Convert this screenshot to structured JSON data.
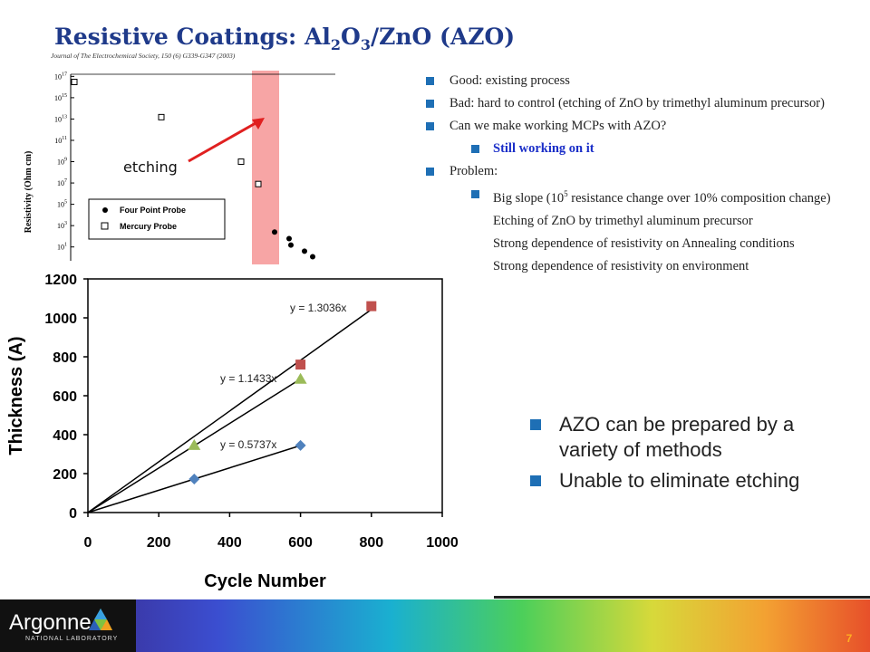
{
  "slide": {
    "title_prefix": "Resistive Coatings: Al",
    "title_sub1": "2",
    "title_mid": "O",
    "title_sub2": "3",
    "title_suffix": "/ZnO (AZO)",
    "page_number": "7",
    "logo_text": "Argonne",
    "logo_sub": "NATIONAL LABORATORY"
  },
  "bullets": [
    {
      "level": 1,
      "text": "Good: existing process"
    },
    {
      "level": 1,
      "text": "Bad: hard to control (etching of ZnO by trimethyl aluminum precursor)"
    },
    {
      "level": 1,
      "text": "Can we make working MCPs with AZO?"
    },
    {
      "level": 2,
      "text": "Still working on it",
      "style": "blue"
    },
    {
      "level": 1,
      "text": "Problem:"
    },
    {
      "level": 2,
      "text_pre": "Big slope (10",
      "sup": "5",
      "text_post": " resistance change over 10% composition change)"
    },
    {
      "level": 2,
      "text": "Etching of ZnO by trimethyl aluminum precursor",
      "nobullet": true
    },
    {
      "level": 2,
      "text": "Strong dependence of resistivity on Annealing conditions",
      "nobullet": true
    },
    {
      "level": 2,
      "text": "Strong dependence of resistivity on environment",
      "nobullet": true
    }
  ],
  "right_bullets": [
    "AZO can be prepared by a variety of methods",
    "Unable to eliminate etching"
  ],
  "colors": {
    "title": "#1f3a8a",
    "bullet": "#1e6fb5",
    "highlight_band": "#f7a5a5",
    "arrow": "#e02020",
    "series_red": "#c0504d",
    "series_green": "#9bbb59",
    "series_blue": "#4f81bd"
  },
  "chart_data": [
    {
      "type": "scatter",
      "title": "",
      "header": "Journal of The Electrochemical Society, 150 (6) G339-G347 (2003)",
      "ylabel": "Resistivity (Ohm cm)",
      "yscale": "log",
      "ytick_labels": [
        "10^17",
        "10^15",
        "10^13",
        "10^11",
        "10^9",
        "10^7",
        "10^5",
        "10^3",
        "10^1"
      ],
      "annotation": "etching",
      "legend": [
        "Four Point Probe",
        "Mercury Probe"
      ],
      "legend_position": "lower-left",
      "series": [
        {
          "name": "Mercury Probe",
          "marker": "open-square",
          "points": [
            {
              "x": 1,
              "y": 3e+16
            },
            {
              "x": 2,
              "y": 15000000000000.0
            },
            {
              "x": 3,
              "y": 1000000000.0
            },
            {
              "x": 4,
              "y": 8000000.0
            }
          ]
        },
        {
          "name": "Four Point Probe",
          "marker": "filled-circle",
          "points": [
            {
              "x": 5,
              "y": 250
            },
            {
              "x": 6,
              "y": 60
            },
            {
              "x": 6.1,
              "y": 15
            },
            {
              "x": 7,
              "y": 4
            },
            {
              "x": 7.4,
              "y": 1.2
            }
          ]
        }
      ]
    },
    {
      "type": "scatter",
      "title": "",
      "xlabel": "Cycle Number",
      "ylabel": "Thickness (A)",
      "xlim": [
        0,
        1000
      ],
      "ylim": [
        0,
        1200
      ],
      "xticks": [
        0,
        200,
        400,
        600,
        800,
        1000
      ],
      "yticks": [
        0,
        200,
        400,
        600,
        800,
        1000,
        1200
      ],
      "series": [
        {
          "name": "",
          "color": "#c0504d",
          "marker": "square",
          "x": [
            600,
            800
          ],
          "y": [
            760,
            1060
          ],
          "slope": 1.3036,
          "fit_label": "y = 1.3036x"
        },
        {
          "name": "",
          "color": "#9bbb59",
          "marker": "triangle",
          "x": [
            300,
            600
          ],
          "y": [
            345,
            685
          ],
          "slope": 1.1433,
          "fit_label": "y = 1.1433x"
        },
        {
          "name": "",
          "color": "#4f81bd",
          "marker": "diamond",
          "x": [
            300,
            600
          ],
          "y": [
            172,
            345
          ],
          "slope": 0.5737,
          "fit_label": "y = 0.5737x"
        }
      ]
    }
  ]
}
